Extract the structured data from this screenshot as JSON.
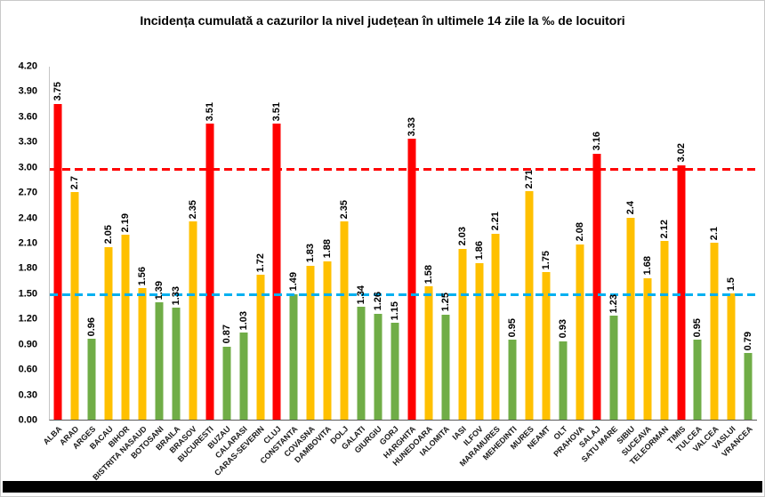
{
  "chart_data": {
    "type": "bar",
    "title": "Incidența cumulată a cazurilor la nivel județean în ultimele 14 zile la ‰ de locuitori",
    "categories": [
      "ALBA",
      "ARAD",
      "ARGES",
      "BACAU",
      "BIHOR",
      "BISTRITA NASAUD",
      "BOTOSANI",
      "BRAILA",
      "BRASOV",
      "BUCURESTI",
      "BUZAU",
      "CALARASI",
      "CARAS-SEVERIN",
      "CLUJ",
      "CONSTANTA",
      "COVASNA",
      "DAMBOVITA",
      "DOLJ",
      "GALATI",
      "GIURGIU",
      "GORJ",
      "HARGHITA",
      "HUNEDOARA",
      "IALOMITA",
      "IASI",
      "ILFOV",
      "MARAMURES",
      "MEHEDINTI",
      "MURES",
      "NEAMT",
      "OLT",
      "PRAHOVA",
      "SALAJ",
      "SATU MARE",
      "SIBIU",
      "SUCEAVA",
      "TELEORMAN",
      "TIMIS",
      "TULCEA",
      "VALCEA",
      "VASLUI",
      "VRANCEA"
    ],
    "values": [
      3.75,
      2.7,
      0.96,
      2.05,
      2.19,
      1.56,
      1.39,
      1.33,
      2.35,
      3.51,
      0.87,
      1.03,
      1.72,
      3.51,
      1.49,
      1.83,
      1.88,
      2.35,
      1.34,
      1.26,
      1.15,
      3.33,
      1.58,
      1.25,
      2.03,
      1.86,
      2.21,
      0.95,
      2.71,
      1.75,
      0.93,
      2.08,
      3.16,
      1.23,
      2.4,
      1.68,
      2.12,
      3.02,
      0.95,
      2.1,
      1.5,
      0.79
    ],
    "xlabel": "",
    "ylabel": "",
    "ylim": [
      0,
      4.2
    ],
    "ytick_step": 0.3,
    "ytick_format_decimals": 2,
    "grid": false,
    "legend": "none",
    "bar_colors": {
      "high": "#FF0000",
      "mid": "#FFC000",
      "low": "#70AD47"
    },
    "color_thresholds": {
      "red_min": 3.0,
      "yellow_min": 1.5
    },
    "reference_lines": [
      {
        "label": "red-threshold",
        "value": 2.97,
        "color": "#FF0000",
        "style": "dashed"
      },
      {
        "label": "blue-threshold",
        "value": 1.48,
        "color": "#00B0F0",
        "style": "dashed"
      }
    ]
  }
}
